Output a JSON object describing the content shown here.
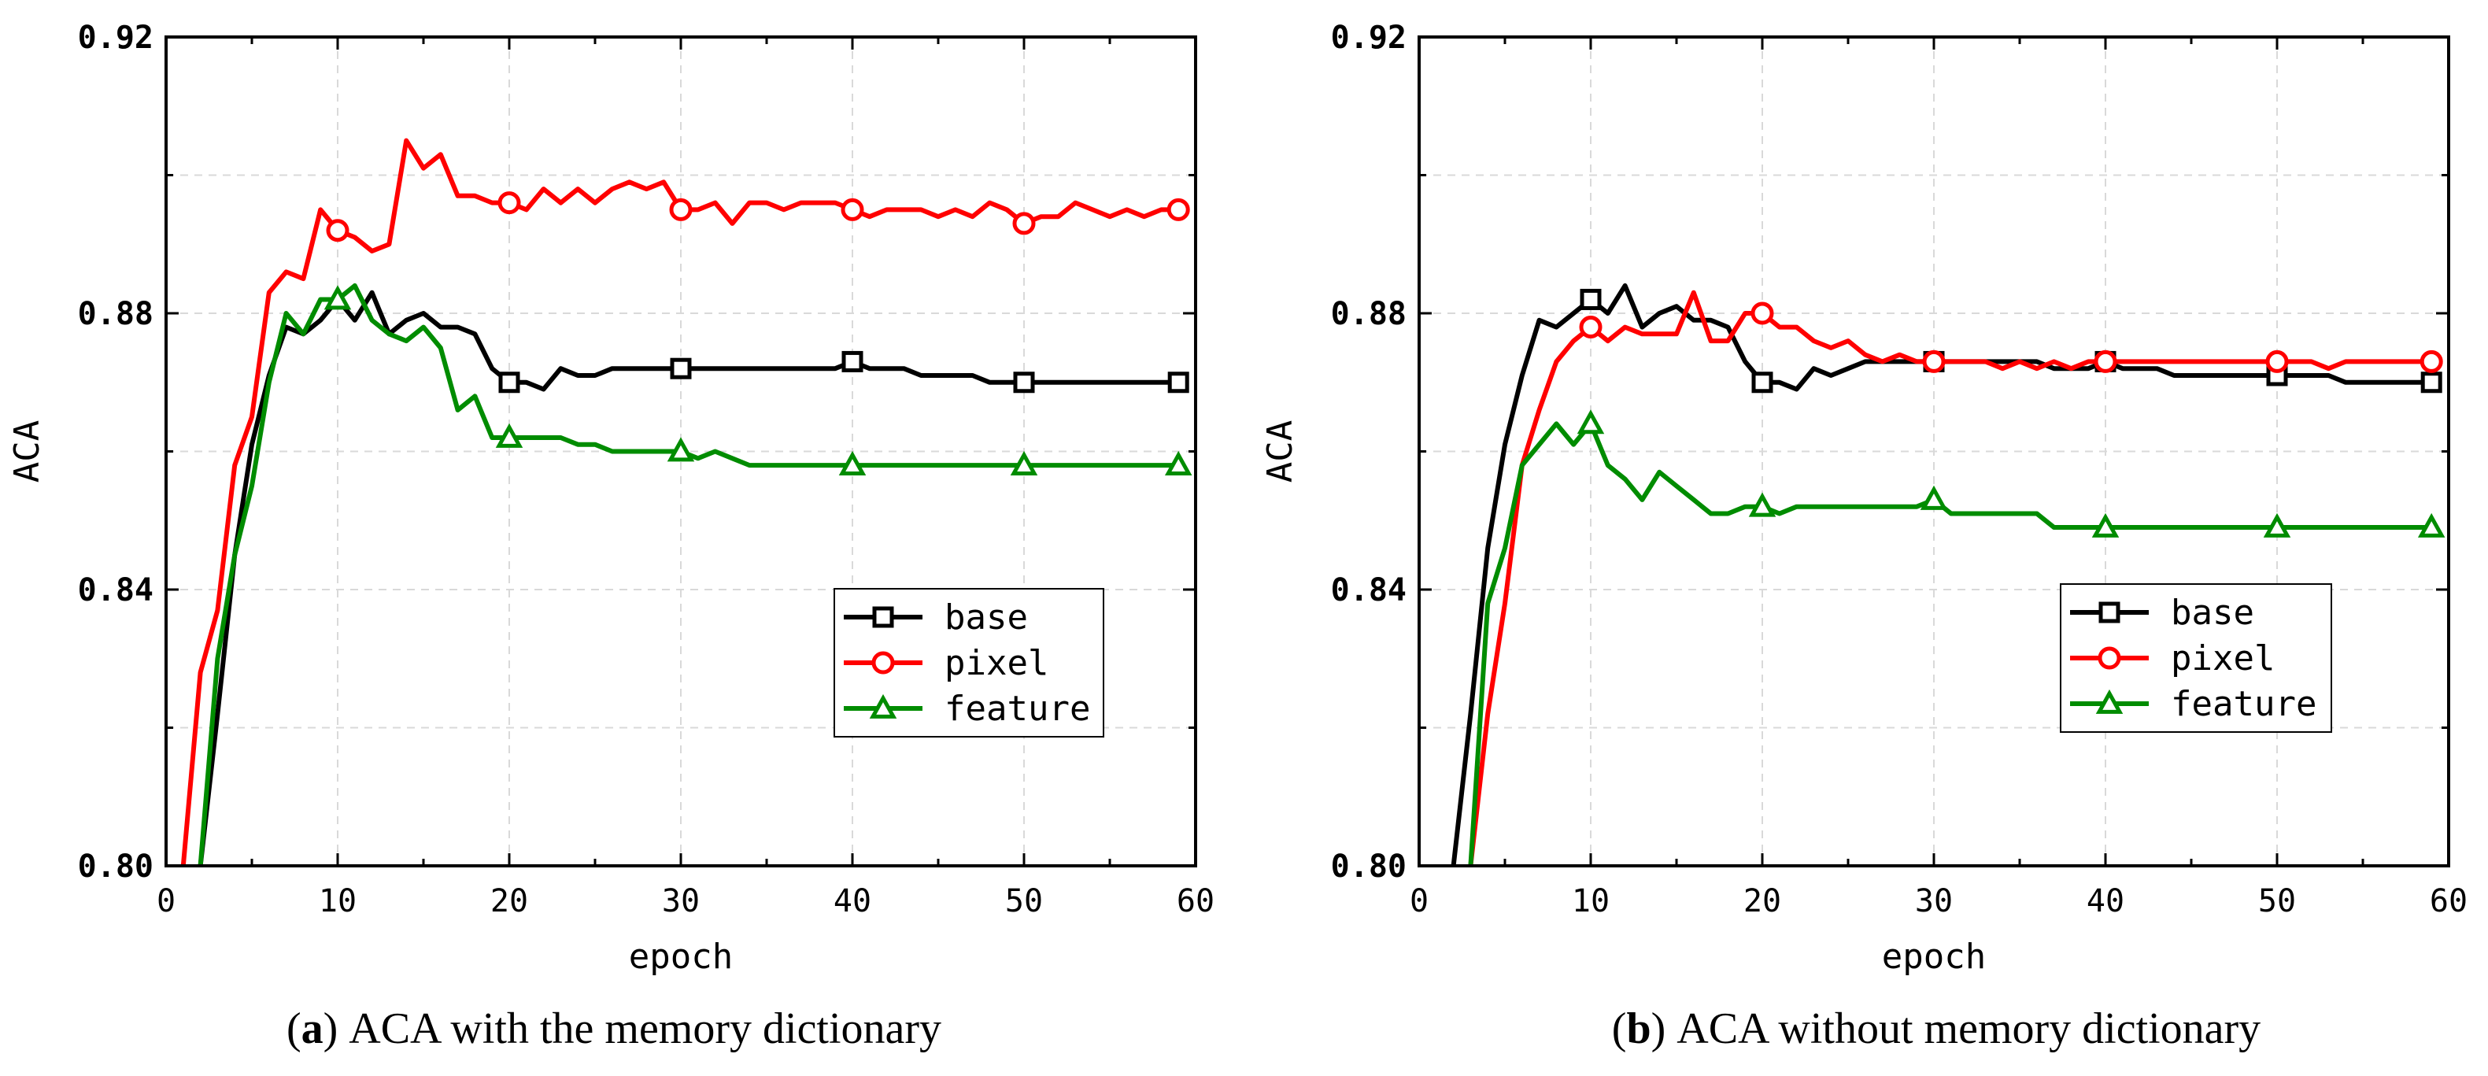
{
  "colors": {
    "base": "#000000",
    "pixel": "#ff0000",
    "feature": "#008c00",
    "grid": "#d9d9d9"
  },
  "chart_data": [
    {
      "type": "line",
      "panel": "a",
      "caption_label": "a",
      "caption_text": " ACA with the memory dictionary",
      "xlabel": "epoch",
      "ylabel": "ACA",
      "xlim": [
        0,
        60
      ],
      "ylim": [
        0.8,
        0.92
      ],
      "xticks": [
        0,
        10,
        20,
        30,
        40,
        50,
        60
      ],
      "xtick_labels": [
        "0",
        "10",
        "20",
        "30",
        "40",
        "50",
        "60"
      ],
      "yticks": [
        0.8,
        0.84,
        0.88,
        0.92
      ],
      "ytick_labels": [
        "0.80",
        "0.84",
        "0.88",
        "0.92"
      ],
      "grid": true,
      "legend_position": "lower-right",
      "series": [
        {
          "name": "base",
          "color_key": "base",
          "marker": "square",
          "x": [
            2,
            3,
            4,
            5,
            6,
            7,
            8,
            9,
            10,
            11,
            12,
            13,
            14,
            15,
            16,
            17,
            18,
            19,
            20,
            21,
            22,
            23,
            24,
            25,
            26,
            27,
            28,
            29,
            30,
            31,
            32,
            33,
            34,
            35,
            36,
            37,
            38,
            39,
            40,
            41,
            42,
            43,
            44,
            45,
            46,
            47,
            48,
            49,
            50,
            51,
            52,
            53,
            54,
            55,
            56,
            57,
            58,
            59
          ],
          "y": [
            0.8,
            0.822,
            0.845,
            0.861,
            0.871,
            0.878,
            0.877,
            0.879,
            0.882,
            0.879,
            0.883,
            0.877,
            0.879,
            0.88,
            0.878,
            0.878,
            0.877,
            0.872,
            0.87,
            0.87,
            0.869,
            0.872,
            0.871,
            0.871,
            0.872,
            0.872,
            0.872,
            0.872,
            0.872,
            0.872,
            0.872,
            0.872,
            0.872,
            0.872,
            0.872,
            0.872,
            0.872,
            0.872,
            0.873,
            0.872,
            0.872,
            0.872,
            0.871,
            0.871,
            0.871,
            0.871,
            0.87,
            0.87,
            0.87,
            0.87,
            0.87,
            0.87,
            0.87,
            0.87,
            0.87,
            0.87,
            0.87,
            0.87
          ],
          "marker_x": [
            20,
            30,
            40,
            50,
            59
          ],
          "marker_y": [
            0.87,
            0.872,
            0.873,
            0.87,
            0.87
          ]
        },
        {
          "name": "pixel",
          "color_key": "pixel",
          "marker": "circle",
          "x": [
            1,
            2,
            3,
            4,
            5,
            6,
            7,
            8,
            9,
            10,
            11,
            12,
            13,
            14,
            15,
            16,
            17,
            18,
            19,
            20,
            21,
            22,
            23,
            24,
            25,
            26,
            27,
            28,
            29,
            30,
            31,
            32,
            33,
            34,
            35,
            36,
            37,
            38,
            39,
            40,
            41,
            42,
            43,
            44,
            45,
            46,
            47,
            48,
            49,
            50,
            51,
            52,
            53,
            54,
            55,
            56,
            57,
            58,
            59
          ],
          "y": [
            0.8,
            0.828,
            0.837,
            0.858,
            0.865,
            0.883,
            0.886,
            0.885,
            0.895,
            0.892,
            0.891,
            0.889,
            0.89,
            0.905,
            0.901,
            0.903,
            0.897,
            0.897,
            0.896,
            0.896,
            0.895,
            0.898,
            0.896,
            0.898,
            0.896,
            0.898,
            0.899,
            0.898,
            0.899,
            0.895,
            0.895,
            0.896,
            0.893,
            0.896,
            0.896,
            0.895,
            0.896,
            0.896,
            0.896,
            0.895,
            0.894,
            0.895,
            0.895,
            0.895,
            0.894,
            0.895,
            0.894,
            0.896,
            0.895,
            0.893,
            0.894,
            0.894,
            0.896,
            0.895,
            0.894,
            0.895,
            0.894,
            0.895,
            0.895
          ],
          "marker_x": [
            10,
            20,
            30,
            40,
            50,
            59
          ],
          "marker_y": [
            0.892,
            0.896,
            0.895,
            0.895,
            0.893,
            0.895
          ]
        },
        {
          "name": "feature",
          "color_key": "feature",
          "marker": "triangle",
          "x": [
            2,
            3,
            4,
            5,
            6,
            7,
            8,
            9,
            10,
            11,
            12,
            13,
            14,
            15,
            16,
            17,
            18,
            19,
            20,
            21,
            22,
            23,
            24,
            25,
            26,
            27,
            28,
            29,
            30,
            31,
            32,
            33,
            34,
            35,
            36,
            37,
            38,
            39,
            40,
            41,
            42,
            43,
            44,
            45,
            46,
            47,
            48,
            49,
            50,
            51,
            52,
            53,
            54,
            55,
            56,
            57,
            58,
            59
          ],
          "y": [
            0.8,
            0.83,
            0.845,
            0.855,
            0.87,
            0.88,
            0.877,
            0.882,
            0.882,
            0.884,
            0.879,
            0.877,
            0.876,
            0.878,
            0.875,
            0.866,
            0.868,
            0.862,
            0.862,
            0.862,
            0.862,
            0.862,
            0.861,
            0.861,
            0.86,
            0.86,
            0.86,
            0.86,
            0.86,
            0.859,
            0.86,
            0.859,
            0.858,
            0.858,
            0.858,
            0.858,
            0.858,
            0.858,
            0.858,
            0.858,
            0.858,
            0.858,
            0.858,
            0.858,
            0.858,
            0.858,
            0.858,
            0.858,
            0.858,
            0.858,
            0.858,
            0.858,
            0.858,
            0.858,
            0.858,
            0.858,
            0.858,
            0.858
          ],
          "marker_x": [
            10,
            20,
            30,
            40,
            50,
            59
          ],
          "marker_y": [
            0.882,
            0.862,
            0.86,
            0.858,
            0.858,
            0.858
          ]
        }
      ]
    },
    {
      "type": "line",
      "panel": "b",
      "caption_label": "b",
      "caption_text": " ACA without memory dictionary",
      "xlabel": "epoch",
      "ylabel": "ACA",
      "xlim": [
        0,
        60
      ],
      "ylim": [
        0.8,
        0.92
      ],
      "xticks": [
        0,
        10,
        20,
        30,
        40,
        50,
        60
      ],
      "xtick_labels": [
        "0",
        "10",
        "20",
        "30",
        "40",
        "50",
        "60"
      ],
      "yticks": [
        0.8,
        0.84,
        0.88,
        0.92
      ],
      "ytick_labels": [
        "0.80",
        "0.84",
        "0.88",
        "0.92"
      ],
      "grid": true,
      "legend_position": "middle-right",
      "series": [
        {
          "name": "base",
          "color_key": "base",
          "marker": "square",
          "x": [
            2,
            3,
            4,
            5,
            6,
            7,
            8,
            9,
            10,
            11,
            12,
            13,
            14,
            15,
            16,
            17,
            18,
            19,
            20,
            21,
            22,
            23,
            24,
            25,
            26,
            27,
            28,
            29,
            30,
            31,
            32,
            33,
            34,
            35,
            36,
            37,
            38,
            39,
            40,
            41,
            42,
            43,
            44,
            45,
            46,
            47,
            48,
            49,
            50,
            51,
            52,
            53,
            54,
            55,
            56,
            57,
            58,
            59
          ],
          "y": [
            0.8,
            0.822,
            0.846,
            0.861,
            0.871,
            0.879,
            0.878,
            0.88,
            0.882,
            0.88,
            0.884,
            0.878,
            0.88,
            0.881,
            0.879,
            0.879,
            0.878,
            0.873,
            0.87,
            0.87,
            0.869,
            0.872,
            0.871,
            0.872,
            0.873,
            0.873,
            0.873,
            0.873,
            0.873,
            0.873,
            0.873,
            0.873,
            0.873,
            0.873,
            0.873,
            0.872,
            0.872,
            0.872,
            0.873,
            0.872,
            0.872,
            0.872,
            0.871,
            0.871,
            0.871,
            0.871,
            0.871,
            0.871,
            0.871,
            0.871,
            0.871,
            0.871,
            0.87,
            0.87,
            0.87,
            0.87,
            0.87,
            0.87
          ],
          "marker_x": [
            10,
            20,
            30,
            40,
            50,
            59
          ],
          "marker_y": [
            0.882,
            0.87,
            0.873,
            0.873,
            0.871,
            0.87
          ]
        },
        {
          "name": "pixel",
          "color_key": "pixel",
          "marker": "circle",
          "x": [
            3,
            4,
            5,
            6,
            7,
            8,
            9,
            10,
            11,
            12,
            13,
            14,
            15,
            16,
            17,
            18,
            19,
            20,
            21,
            22,
            23,
            24,
            25,
            26,
            27,
            28,
            29,
            30,
            31,
            32,
            33,
            34,
            35,
            36,
            37,
            38,
            39,
            40,
            41,
            42,
            43,
            44,
            45,
            46,
            47,
            48,
            49,
            50,
            51,
            52,
            53,
            54,
            55,
            56,
            57,
            58,
            59
          ],
          "y": [
            0.8,
            0.822,
            0.838,
            0.858,
            0.866,
            0.873,
            0.876,
            0.878,
            0.876,
            0.878,
            0.877,
            0.877,
            0.877,
            0.883,
            0.876,
            0.876,
            0.88,
            0.88,
            0.878,
            0.878,
            0.876,
            0.875,
            0.876,
            0.874,
            0.873,
            0.874,
            0.873,
            0.873,
            0.873,
            0.873,
            0.873,
            0.872,
            0.873,
            0.872,
            0.873,
            0.872,
            0.873,
            0.873,
            0.873,
            0.873,
            0.873,
            0.873,
            0.873,
            0.873,
            0.873,
            0.873,
            0.873,
            0.873,
            0.873,
            0.873,
            0.872,
            0.873,
            0.873,
            0.873,
            0.873,
            0.873,
            0.873
          ],
          "marker_x": [
            10,
            20,
            30,
            40,
            50,
            59
          ],
          "marker_y": [
            0.878,
            0.88,
            0.873,
            0.873,
            0.873,
            0.873
          ]
        },
        {
          "name": "feature",
          "color_key": "feature",
          "marker": "triangle",
          "x": [
            3,
            4,
            5,
            6,
            7,
            8,
            9,
            10,
            11,
            12,
            13,
            14,
            15,
            16,
            17,
            18,
            19,
            20,
            21,
            22,
            23,
            24,
            25,
            26,
            27,
            28,
            29,
            30,
            31,
            32,
            33,
            34,
            35,
            36,
            37,
            38,
            39,
            40,
            41,
            42,
            43,
            44,
            45,
            46,
            47,
            48,
            49,
            50,
            51,
            52,
            53,
            54,
            55,
            56,
            57,
            58,
            59
          ],
          "y": [
            0.8,
            0.838,
            0.846,
            0.858,
            0.861,
            0.864,
            0.861,
            0.864,
            0.858,
            0.856,
            0.853,
            0.857,
            0.855,
            0.853,
            0.851,
            0.851,
            0.852,
            0.852,
            0.851,
            0.852,
            0.852,
            0.852,
            0.852,
            0.852,
            0.852,
            0.852,
            0.852,
            0.853,
            0.851,
            0.851,
            0.851,
            0.851,
            0.851,
            0.851,
            0.849,
            0.849,
            0.849,
            0.849,
            0.849,
            0.849,
            0.849,
            0.849,
            0.849,
            0.849,
            0.849,
            0.849,
            0.849,
            0.849,
            0.849,
            0.849,
            0.849,
            0.849,
            0.849,
            0.849,
            0.849,
            0.849,
            0.849
          ],
          "marker_x": [
            10,
            20,
            30,
            40,
            50,
            59
          ],
          "marker_y": [
            0.864,
            0.852,
            0.853,
            0.849,
            0.849,
            0.849
          ]
        }
      ]
    }
  ]
}
